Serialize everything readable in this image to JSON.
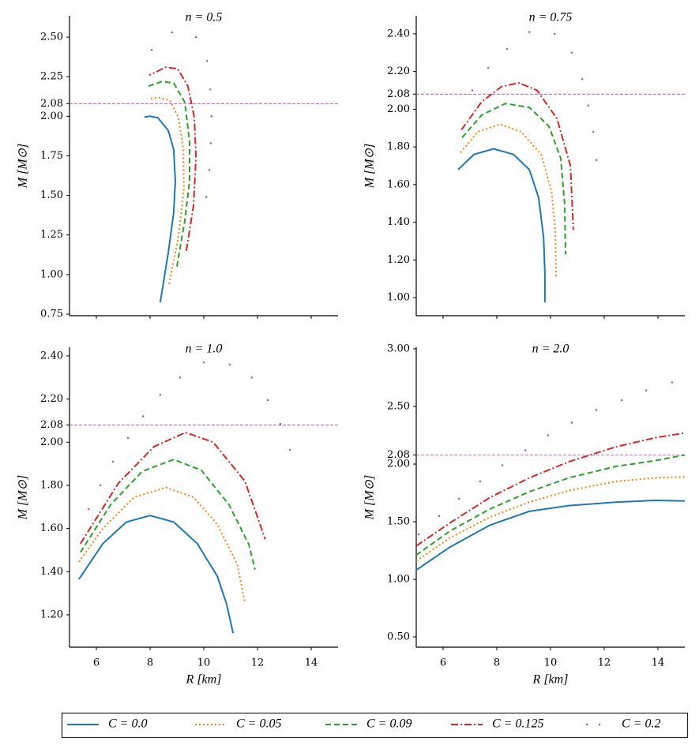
{
  "chart_data": [
    {
      "type": "line",
      "title": "n = 0.5",
      "ylabel": "M [M⊙]",
      "xlim": [
        5,
        15
      ],
      "xticks": [
        6,
        8,
        10,
        12,
        14
      ],
      "xtick_labels": false,
      "ylim": [
        0.74,
        2.635
      ],
      "yticks": [
        0.75,
        {
          "value": 1.0,
          "label": "1.00"
        },
        1.25,
        {
          "value": 1.5,
          "label": "1.50"
        },
        1.75,
        {
          "value": 2.0,
          "label": "2.00"
        },
        2.08,
        2.25,
        {
          "value": 2.5,
          "label": "2.50"
        }
      ],
      "hline": 2.08,
      "hline_color": "#bf3fbf",
      "series": [
        {
          "name": "C = 0.0",
          "color": "#1f77b4",
          "style": "solid",
          "x": [
            8.38,
            8.68,
            8.88,
            8.94,
            8.88,
            8.68,
            8.29,
            8.0,
            7.79
          ],
          "values": [
            0.825,
            1.14,
            1.39,
            1.59,
            1.79,
            1.91,
            1.99,
            2.0,
            1.995
          ]
        },
        {
          "name": "C = 0.05",
          "color": "#ff7f0e",
          "style": "dotted",
          "x": [
            8.71,
            9.06,
            9.26,
            9.24,
            9.06,
            8.74,
            8.29,
            8.0
          ],
          "values": [
            0.94,
            1.24,
            1.54,
            1.79,
            1.99,
            2.1,
            2.12,
            2.11
          ]
        },
        {
          "name": "C = 0.09",
          "color": "#2ca02c",
          "style": "dashed",
          "x": [
            9.0,
            9.29,
            9.47,
            9.47,
            9.29,
            8.88,
            8.44,
            7.94
          ],
          "values": [
            1.05,
            1.34,
            1.59,
            1.84,
            2.09,
            2.21,
            2.22,
            2.19
          ]
        },
        {
          "name": "C = 0.125",
          "color": "#d62728",
          "style": "dashdot",
          "x": [
            9.35,
            9.62,
            9.71,
            9.65,
            9.41,
            9.03,
            8.59,
            7.97
          ],
          "values": [
            1.15,
            1.44,
            1.74,
            1.99,
            2.19,
            2.3,
            2.31,
            2.26
          ]
        },
        {
          "name": "C = 0.2",
          "color": "#9467bd",
          "style": "dots",
          "x": [
            8.06,
            8.82,
            9.71,
            10.12,
            10.24,
            10.29,
            10.26,
            10.21,
            10.09
          ],
          "values": [
            2.42,
            2.53,
            2.5,
            2.35,
            2.17,
            2.0,
            1.83,
            1.66,
            1.49
          ]
        }
      ]
    },
    {
      "type": "line",
      "title": "n = 0.75",
      "ylabel": "M [M⊙]",
      "xlim": [
        5,
        15
      ],
      "xticks": [
        6,
        8,
        10,
        12,
        14
      ],
      "xtick_labels": false,
      "ylim": [
        0.904,
        2.496
      ],
      "yticks": [
        {
          "value": 1.0,
          "label": "1.00"
        },
        {
          "value": 1.2,
          "label": "1.20"
        },
        {
          "value": 1.4,
          "label": "1.40"
        },
        {
          "value": 1.6,
          "label": "1.60"
        },
        {
          "value": 1.8,
          "label": "1.80"
        },
        {
          "value": 2.0,
          "label": "2.00"
        },
        2.08,
        {
          "value": 2.2,
          "label": "2.20"
        },
        {
          "value": 2.4,
          "label": "2.40"
        }
      ],
      "hline": 2.08,
      "hline_color": "#bf3fbf",
      "series": [
        {
          "color": "#1f77b4",
          "style": "solid",
          "x": [
            6.56,
            7.15,
            7.88,
            8.62,
            9.21,
            9.56,
            9.74,
            9.79,
            9.79
          ],
          "values": [
            1.68,
            1.76,
            1.79,
            1.76,
            1.68,
            1.53,
            1.32,
            1.13,
            0.975
          ]
        },
        {
          "color": "#ff7f0e",
          "style": "dotted",
          "x": [
            6.65,
            7.29,
            8.12,
            8.91,
            9.65,
            10.03,
            10.18,
            10.21
          ],
          "values": [
            1.77,
            1.88,
            1.92,
            1.88,
            1.76,
            1.57,
            1.36,
            1.1
          ]
        },
        {
          "color": "#2ca02c",
          "style": "dashed",
          "x": [
            6.71,
            7.44,
            8.32,
            9.21,
            9.94,
            10.38,
            10.53,
            10.56
          ],
          "values": [
            1.85,
            1.97,
            2.03,
            2.01,
            1.91,
            1.74,
            1.49,
            1.23
          ]
        },
        {
          "color": "#d62728",
          "style": "dashdot",
          "x": [
            6.68,
            7.44,
            8.18,
            8.82,
            9.5,
            10.24,
            10.74,
            10.85
          ],
          "values": [
            1.89,
            2.04,
            2.12,
            2.14,
            2.1,
            1.95,
            1.7,
            1.36
          ]
        },
        {
          "color": "#9467bd",
          "style": "dots",
          "x": [
            7.09,
            7.68,
            8.38,
            9.21,
            10.15,
            10.79,
            11.18,
            11.41,
            11.59,
            11.71
          ],
          "values": [
            2.1,
            2.22,
            2.32,
            2.41,
            2.4,
            2.3,
            2.16,
            2.02,
            1.88,
            1.73
          ]
        }
      ]
    },
    {
      "type": "line",
      "title": "n = 1.0",
      "xlabel": "R [km]",
      "ylabel": "M [M⊙]",
      "xlim": [
        5,
        15
      ],
      "xticks": [
        6,
        8,
        10,
        12,
        14
      ],
      "xtick_labels": true,
      "ylim": [
        1.05,
        2.44
      ],
      "yticks": [
        {
          "value": 1.2,
          "label": "1.20"
        },
        {
          "value": 1.4,
          "label": "1.40"
        },
        {
          "value": 1.6,
          "label": "1.60"
        },
        {
          "value": 1.8,
          "label": "1.80"
        },
        {
          "value": 2.0,
          "label": "2.00"
        },
        2.08,
        {
          "value": 2.2,
          "label": "2.20"
        },
        {
          "value": 2.4,
          "label": "2.40"
        }
      ],
      "hline": 2.08,
      "hline_color": "#bf3fbf",
      "series": [
        {
          "color": "#1f77b4",
          "style": "solid",
          "x": [
            5.35,
            6.24,
            7.12,
            8.0,
            8.88,
            9.76,
            10.5,
            10.85,
            11.09
          ],
          "values": [
            1.365,
            1.53,
            1.63,
            1.66,
            1.63,
            1.53,
            1.38,
            1.25,
            1.115
          ]
        },
        {
          "color": "#ff7f0e",
          "style": "dotted",
          "x": [
            5.35,
            6.24,
            7.41,
            8.59,
            9.62,
            10.5,
            11.24,
            11.53
          ],
          "values": [
            1.445,
            1.6,
            1.745,
            1.79,
            1.745,
            1.62,
            1.435,
            1.26
          ]
        },
        {
          "color": "#2ca02c",
          "style": "dashed",
          "x": [
            5.41,
            6.53,
            7.71,
            8.88,
            9.91,
            10.94,
            11.68,
            11.91
          ],
          "values": [
            1.49,
            1.71,
            1.865,
            1.92,
            1.87,
            1.71,
            1.525,
            1.41
          ]
        },
        {
          "color": "#d62728",
          "style": "dashdot",
          "x": [
            5.41,
            6.82,
            8.15,
            9.32,
            10.35,
            11.53,
            12.29
          ],
          "values": [
            1.53,
            1.81,
            1.98,
            2.045,
            2.0,
            1.82,
            1.55
          ]
        },
        {
          "color": "#9467bd",
          "style": "dots",
          "x": [
            5.71,
            6.15,
            6.62,
            7.18,
            7.74,
            8.38,
            9.12,
            10.0,
            10.97,
            11.79,
            12.38,
            12.85,
            13.21
          ],
          "values": [
            1.69,
            1.8,
            1.91,
            2.02,
            2.12,
            2.22,
            2.3,
            2.37,
            2.36,
            2.3,
            2.195,
            2.085,
            1.965
          ]
        }
      ]
    },
    {
      "type": "line",
      "title": "n = 2.0",
      "xlabel": "R [km]",
      "ylabel": "M [M⊙]",
      "xlim": [
        5,
        15
      ],
      "xticks": [
        6,
        8,
        10,
        12,
        14
      ],
      "xtick_labels": true,
      "ylim": [
        0.411,
        3.014
      ],
      "yticks": [
        {
          "value": 0.5,
          "label": "0.50"
        },
        {
          "value": 1.0,
          "label": "1.00"
        },
        {
          "value": 1.5,
          "label": "1.50"
        },
        {
          "value": 2.0,
          "label": "2.00"
        },
        2.08,
        {
          "value": 2.5,
          "label": "2.50"
        },
        {
          "value": 3.0,
          "label": "3.00"
        }
      ],
      "hline": 2.08,
      "hline_color": "#bf3fbf",
      "series": [
        {
          "color": "#1f77b4",
          "style": "solid",
          "x": [
            5.0,
            6.26,
            7.74,
            9.21,
            10.68,
            12.44,
            13.91,
            15.0
          ],
          "values": [
            1.08,
            1.28,
            1.47,
            1.59,
            1.64,
            1.67,
            1.685,
            1.68
          ]
        },
        {
          "color": "#ff7f0e",
          "style": "dotted",
          "x": [
            5.0,
            6.26,
            7.74,
            9.21,
            10.68,
            12.44,
            13.91,
            15.0
          ],
          "values": [
            1.16,
            1.36,
            1.54,
            1.67,
            1.77,
            1.85,
            1.88,
            1.89
          ]
        },
        {
          "color": "#2ca02c",
          "style": "dashed",
          "x": [
            5.0,
            6.26,
            7.74,
            9.21,
            10.68,
            12.44,
            13.91,
            15.0
          ],
          "values": [
            1.21,
            1.42,
            1.61,
            1.76,
            1.88,
            1.98,
            2.03,
            2.08
          ]
        },
        {
          "color": "#d62728",
          "style": "dashdot",
          "x": [
            5.0,
            6.26,
            7.74,
            9.21,
            10.68,
            12.44,
            13.91,
            15.0
          ],
          "values": [
            1.29,
            1.49,
            1.71,
            1.88,
            2.02,
            2.15,
            2.23,
            2.27
          ]
        },
        {
          "color": "#9467bd",
          "style": "dots",
          "x": [
            5.09,
            5.85,
            6.59,
            7.38,
            8.21,
            9.06,
            9.91,
            10.79,
            11.71,
            12.65,
            13.56,
            14.53
          ],
          "values": [
            1.39,
            1.55,
            1.7,
            1.85,
            1.99,
            2.12,
            2.25,
            2.36,
            2.47,
            2.555,
            2.64,
            2.71
          ]
        }
      ]
    }
  ]
}
